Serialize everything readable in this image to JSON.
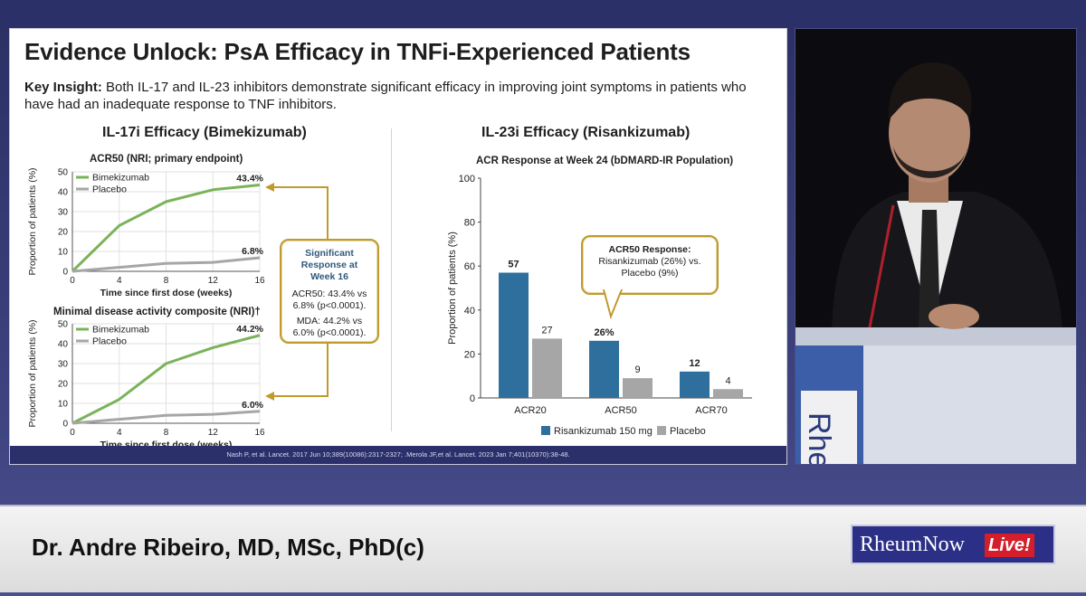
{
  "slide": {
    "title": "Evidence Unlock: PsA Efficacy in TNFi-Experienced Patients",
    "insight_label": "Key Insight:",
    "insight_text": "Both IL-17 and IL-23 inhibitors demonstrate significant efficacy in improving joint symptoms in patients who have had an inadequate response to TNF inhibitors.",
    "left_panel_title": "IL-17i Efficacy (Bimekizumab)",
    "right_panel_title": "IL-23i Efficacy (Risankizumab)",
    "callout_left": {
      "heading": "Significant Response at Week 16",
      "line1": "ACR50: 43.4% vs 6.8% (p<0.0001).",
      "line2": "MDA: 44.2% vs 6.0% (p<0.0001)."
    },
    "callout_right": {
      "heading": "ACR50 Response:",
      "body": "Risankizumab (26%) vs. Placebo (9%)"
    },
    "citation": "Nash P, et al. Lancet. 2017 Jun 10;389(10086):2317-2327; .Merola JF,et al. Lancet. 2023 Jan 7;401(10370):38-48."
  },
  "colors": {
    "green": "#7ab35a",
    "grey": "#a6a6a6",
    "blue": "#2f6f9e",
    "gold": "#c09a2c"
  },
  "chart_data": [
    {
      "type": "line",
      "title": "ACR50 (NRI; primary endpoint)",
      "xlabel": "Time since first dose (weeks)",
      "ylabel": "Proportion of patients (%)",
      "x": [
        0,
        4,
        8,
        12,
        16
      ],
      "xticks": [
        "0",
        "4",
        "8",
        "12",
        "16"
      ],
      "yticks": [
        "0",
        "10",
        "20",
        "30",
        "40",
        "50"
      ],
      "ylim": [
        0,
        50
      ],
      "series": [
        {
          "name": "Bimekizumab",
          "values": [
            0,
            23,
            35,
            41,
            43.4
          ],
          "end_label": "43.4%"
        },
        {
          "name": "Placebo",
          "values": [
            0,
            2,
            4,
            4.5,
            6.8
          ],
          "end_label": "6.8%"
        }
      ],
      "grid": true
    },
    {
      "type": "line",
      "title": "Minimal disease activity composite (NRI)†",
      "xlabel": "Time since first dose (weeks)",
      "ylabel": "Proportion of patients (%)",
      "x": [
        0,
        4,
        8,
        12,
        16
      ],
      "xticks": [
        "0",
        "4",
        "8",
        "12",
        "16"
      ],
      "yticks": [
        "0",
        "10",
        "20",
        "30",
        "40",
        "50"
      ],
      "ylim": [
        0,
        50
      ],
      "series": [
        {
          "name": "Bimekizumab",
          "values": [
            0,
            12,
            30,
            38,
            44.2
          ],
          "end_label": "44.2%"
        },
        {
          "name": "Placebo",
          "values": [
            0,
            2,
            4,
            4.5,
            6.0
          ],
          "end_label": "6.0%"
        }
      ],
      "grid": true
    },
    {
      "type": "bar",
      "title": "ACR Response at Week 24 (bDMARD-IR Population)",
      "ylabel": "Proportion of patients (%)",
      "categories": [
        "ACR20",
        "ACR50",
        "ACR70"
      ],
      "yticks": [
        "0",
        "20",
        "40",
        "60",
        "80",
        "100"
      ],
      "ylim": [
        0,
        100
      ],
      "series": [
        {
          "name": "Risankizumab 150 mg",
          "values": [
            57,
            26,
            12
          ],
          "labels": [
            "57",
            "26%",
            "12"
          ]
        },
        {
          "name": "Placebo",
          "values": [
            27,
            9,
            4
          ],
          "labels": [
            "27",
            "9",
            "4"
          ]
        }
      ],
      "legend": "bottom"
    }
  ],
  "lower_third": {
    "presenter": "Dr. Andre Ribeiro, MD, MSc, PhD(c)",
    "brand_name": "RheumNow",
    "brand_live": "Live!"
  },
  "video": {
    "podium_text": "Rhe"
  }
}
